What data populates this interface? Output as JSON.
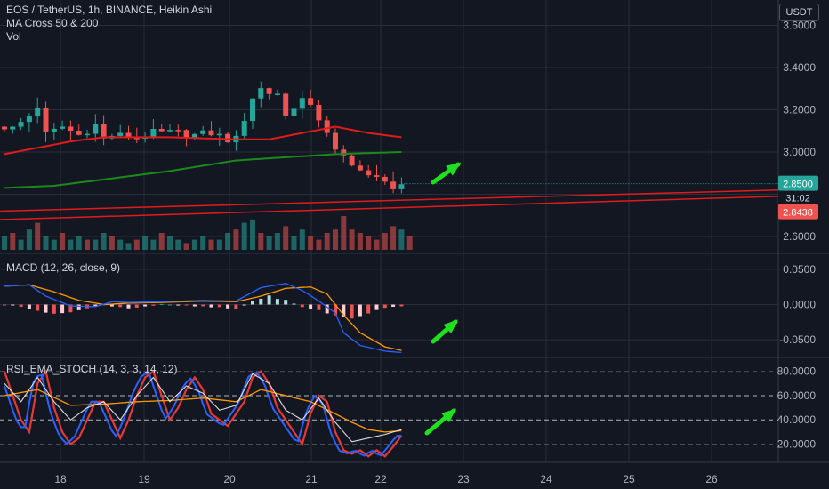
{
  "header": {
    "title": "EOS / TetherUS, 1h, BINANCE, Heikin Ashi",
    "indicator_1": "MA Cross 50 & 200",
    "indicator_2": "Vol",
    "currency": "USDT"
  },
  "colors": {
    "background": "#131722",
    "grid": "#2a2e39",
    "up": "#26a69a",
    "down": "#ef5350",
    "ma50": "#e11b1b",
    "ma200": "#1b8a1b",
    "macd": "#2962ff",
    "signal": "#ff9800",
    "rsi_k": "#2962ff",
    "rsi_d": "#e53935",
    "rsi_line": "#ffffff",
    "rsi_ema": "#ff9800",
    "arrow": "#1fe01f"
  },
  "chart_data": [
    {
      "type": "candlestick",
      "name": "EOS / TetherUS, 1h, BINANCE, Heikin Ashi",
      "x_ticks": [
        "18",
        "19",
        "20",
        "21",
        "22",
        "23",
        "24",
        "25",
        "26"
      ],
      "y_ticks": [
        "2.6000",
        "2.8000",
        "3.0000",
        "3.2000",
        "3.4000",
        "3.6000"
      ],
      "ylim": [
        2.52,
        3.72
      ],
      "last_price": "2.8500",
      "countdown": "31:02",
      "ma_price": "2.8438",
      "close_anchors": [
        [
          0,
          3.12
        ],
        [
          1,
          3.11
        ],
        [
          3,
          3.17
        ],
        [
          4,
          3.22
        ],
        [
          5,
          3.08
        ],
        [
          6,
          3.1
        ],
        [
          7,
          3.12
        ],
        [
          9,
          3.08
        ],
        [
          11,
          3.13
        ],
        [
          12,
          3.06
        ],
        [
          13,
          3.08
        ],
        [
          16,
          3.07
        ],
        [
          18,
          3.09
        ],
        [
          21,
          3.09
        ],
        [
          23,
          3.08
        ],
        [
          25,
          3.09
        ],
        [
          27,
          3.06
        ],
        [
          28,
          3.06
        ],
        [
          30,
          3.26
        ],
        [
          31,
          3.3
        ],
        [
          32,
          3.28
        ],
        [
          33,
          3.28
        ],
        [
          34,
          3.17
        ],
        [
          35,
          3.22
        ],
        [
          36,
          3.25
        ],
        [
          38,
          3.16
        ],
        [
          39,
          3.1
        ],
        [
          40,
          3.0
        ],
        [
          41,
          2.97
        ],
        [
          42,
          2.93
        ],
        [
          43,
          2.93
        ],
        [
          44,
          2.89
        ],
        [
          46,
          2.85
        ],
        [
          47,
          2.84
        ],
        [
          48,
          2.85
        ]
      ],
      "ma50_anchors": [
        [
          0,
          2.99
        ],
        [
          4,
          3.02
        ],
        [
          8,
          3.05
        ],
        [
          12,
          3.07
        ],
        [
          20,
          3.07
        ],
        [
          28,
          3.06
        ],
        [
          32,
          3.06
        ],
        [
          36,
          3.09
        ],
        [
          40,
          3.12
        ],
        [
          44,
          3.09
        ],
        [
          48,
          3.07
        ]
      ],
      "ma200_anchors": [
        [
          0,
          2.83
        ],
        [
          6,
          2.84
        ],
        [
          12,
          2.87
        ],
        [
          20,
          2.91
        ],
        [
          28,
          2.96
        ],
        [
          36,
          2.98
        ],
        [
          40,
          2.99
        ],
        [
          48,
          3.0
        ]
      ],
      "trendlines": [
        {
          "from": [
            0,
            2.72
          ],
          "to": [
            1.0,
            2.82
          ]
        },
        {
          "from": [
            0,
            2.68
          ],
          "to": [
            1.0,
            2.79
          ]
        }
      ],
      "volume": [
        4,
        5,
        3,
        6,
        8,
        4,
        3,
        5,
        3,
        4,
        3,
        3,
        5,
        4,
        3,
        2,
        3,
        4,
        3,
        5,
        4,
        3,
        2,
        3,
        4,
        3,
        3,
        5,
        6,
        8,
        9,
        5,
        4,
        5,
        7,
        4,
        6,
        4,
        3,
        5,
        6,
        10,
        6,
        5,
        4,
        3,
        5,
        7,
        6,
        4
      ]
    },
    {
      "type": "line",
      "name": "MACD (12, 26, close, 9)",
      "y_ticks": [
        "0.0500",
        "0.0000",
        "-0.0500"
      ],
      "ylim": [
        -0.075,
        0.07
      ],
      "macd_anchors": [
        [
          0,
          0.026
        ],
        [
          3,
          0.028
        ],
        [
          5,
          0.012
        ],
        [
          8,
          -0.002
        ],
        [
          11,
          -0.003
        ],
        [
          13,
          0.004
        ],
        [
          15,
          0.003
        ],
        [
          19,
          0.004
        ],
        [
          24,
          0.006
        ],
        [
          28,
          0.005
        ],
        [
          31,
          0.024
        ],
        [
          34,
          0.03
        ],
        [
          36,
          0.02
        ],
        [
          38,
          0.005
        ],
        [
          40,
          -0.012
        ],
        [
          41,
          -0.04
        ],
        [
          43,
          -0.058
        ],
        [
          46,
          -0.066
        ],
        [
          48,
          -0.068
        ]
      ],
      "signal_anchors": [
        [
          0,
          0.026
        ],
        [
          3,
          0.028
        ],
        [
          6,
          0.018
        ],
        [
          9,
          0.006
        ],
        [
          12,
          0.0
        ],
        [
          15,
          0.002
        ],
        [
          19,
          0.003
        ],
        [
          24,
          0.005
        ],
        [
          28,
          0.004
        ],
        [
          31,
          0.012
        ],
        [
          34,
          0.023
        ],
        [
          37,
          0.025
        ],
        [
          39,
          0.015
        ],
        [
          41,
          -0.015
        ],
        [
          43,
          -0.04
        ],
        [
          46,
          -0.06
        ],
        [
          48,
          -0.065
        ]
      ],
      "hist_anchors": [
        [
          0,
          0.0
        ],
        [
          3,
          -0.005
        ],
        [
          6,
          -0.014
        ],
        [
          9,
          -0.008
        ],
        [
          12,
          0.0
        ],
        [
          15,
          -0.005
        ],
        [
          19,
          0.0
        ],
        [
          24,
          -0.003
        ],
        [
          28,
          -0.006
        ],
        [
          30,
          0.005
        ],
        [
          32,
          0.012
        ],
        [
          34,
          0.006
        ],
        [
          36,
          -0.004
        ],
        [
          38,
          -0.008
        ],
        [
          40,
          -0.016
        ],
        [
          42,
          -0.02
        ],
        [
          44,
          -0.012
        ],
        [
          46,
          -0.005
        ],
        [
          48,
          -0.002
        ]
      ]
    },
    {
      "type": "line",
      "name": "RSI_EMA_STOCH (14, 3, 3, 14, 12)",
      "y_ticks": [
        "20.0000",
        "40.0000",
        "60.0000",
        "80.0000"
      ],
      "ylim": [
        5,
        90
      ],
      "k_anchors": [
        [
          0,
          80
        ],
        [
          1,
          60
        ],
        [
          2,
          40
        ],
        [
          3,
          30
        ],
        [
          4,
          70
        ],
        [
          5,
          80
        ],
        [
          6,
          50
        ],
        [
          7,
          30
        ],
        [
          8,
          20
        ],
        [
          9,
          25
        ],
        [
          10,
          40
        ],
        [
          11,
          55
        ],
        [
          12,
          55
        ],
        [
          13,
          40
        ],
        [
          14,
          25
        ],
        [
          15,
          40
        ],
        [
          16,
          60
        ],
        [
          17,
          75
        ],
        [
          18,
          80
        ],
        [
          19,
          60
        ],
        [
          20,
          40
        ],
        [
          21,
          50
        ],
        [
          22,
          65
        ],
        [
          23,
          75
        ],
        [
          24,
          65
        ],
        [
          25,
          45
        ],
        [
          26,
          40
        ],
        [
          27,
          35
        ],
        [
          28,
          45
        ],
        [
          29,
          55
        ],
        [
          30,
          75
        ],
        [
          31,
          80
        ],
        [
          32,
          70
        ],
        [
          33,
          50
        ],
        [
          34,
          40
        ],
        [
          35,
          30
        ],
        [
          36,
          20
        ],
        [
          37,
          45
        ],
        [
          38,
          60
        ],
        [
          39,
          55
        ],
        [
          40,
          30
        ],
        [
          41,
          15
        ],
        [
          42,
          12
        ],
        [
          43,
          15
        ],
        [
          44,
          10
        ],
        [
          45,
          15
        ],
        [
          46,
          10
        ],
        [
          47,
          18
        ],
        [
          48,
          27
        ]
      ],
      "rsi_anchors": [
        [
          0,
          70
        ],
        [
          2,
          55
        ],
        [
          4,
          75
        ],
        [
          6,
          55
        ],
        [
          8,
          40
        ],
        [
          10,
          50
        ],
        [
          12,
          55
        ],
        [
          14,
          40
        ],
        [
          16,
          60
        ],
        [
          18,
          75
        ],
        [
          20,
          55
        ],
        [
          22,
          68
        ],
        [
          24,
          62
        ],
        [
          26,
          48
        ],
        [
          28,
          52
        ],
        [
          30,
          78
        ],
        [
          32,
          70
        ],
        [
          34,
          48
        ],
        [
          36,
          40
        ],
        [
          38,
          58
        ],
        [
          40,
          38
        ],
        [
          42,
          22
        ],
        [
          44,
          25
        ],
        [
          46,
          28
        ],
        [
          48,
          32
        ]
      ],
      "ema_anchors": [
        [
          0,
          60
        ],
        [
          4,
          65
        ],
        [
          8,
          52
        ],
        [
          12,
          53
        ],
        [
          16,
          55
        ],
        [
          20,
          56
        ],
        [
          24,
          58
        ],
        [
          28,
          55
        ],
        [
          31,
          65
        ],
        [
          34,
          60
        ],
        [
          37,
          55
        ],
        [
          40,
          45
        ],
        [
          42,
          38
        ],
        [
          44,
          32
        ],
        [
          46,
          30
        ],
        [
          48,
          31
        ]
      ]
    }
  ]
}
